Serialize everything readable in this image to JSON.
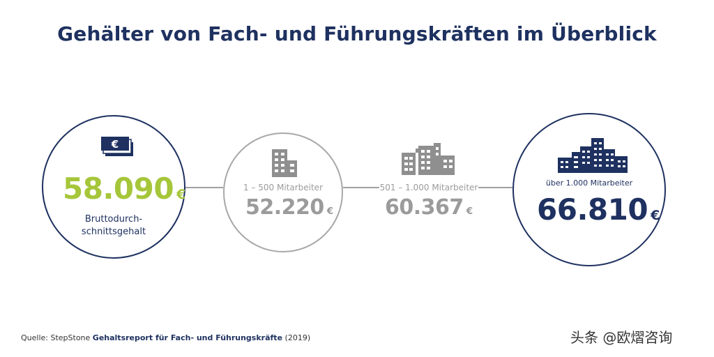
{
  "title": "Gehälter von Fach- und Führungskräften im Überblick",
  "currency": "€",
  "average": {
    "value": "58.090",
    "label_line1": "Bruttodurch-",
    "label_line2": "schnittsgehalt"
  },
  "size_groups": [
    {
      "label": "1 – 500 Mitarbeiter",
      "value": "52.220"
    },
    {
      "label": "501 – 1.000 Mitarbeiter",
      "value": "60.367"
    },
    {
      "label": "über 1.000 Mitarbeiter",
      "value": "66.810"
    }
  ],
  "source": {
    "prefix": "Quelle: StepStone",
    "report": "Gehaltsreport für Fach- und Führungskräfte",
    "year": "(2019)"
  },
  "watermark": "头条 @欧熠咨询",
  "colors": {
    "navy": "#1e3160",
    "green": "#a6c63a",
    "gray": "#9b9b9b"
  },
  "icons": [
    "money-bills-icon",
    "small-building-icon",
    "medium-buildings-icon",
    "large-buildings-icon"
  ]
}
